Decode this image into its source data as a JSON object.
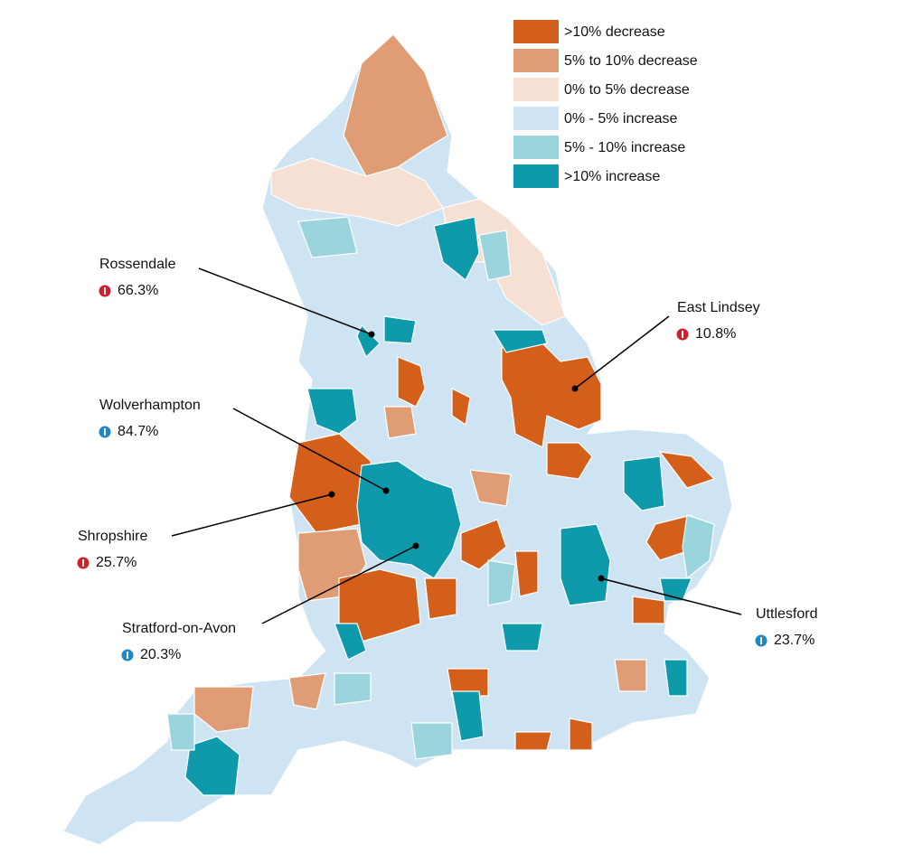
{
  "legend": {
    "items": [
      {
        "label": ">10% decrease",
        "color": "#d35f1a"
      },
      {
        "label": "5% to 10% decrease",
        "color": "#e09d75"
      },
      {
        "label": "0% to 5% decrease",
        "color": "#f6dfd3"
      },
      {
        "label": "0% - 5% increase",
        "color": "#cfe4f3"
      },
      {
        "label": "5% - 10% increase",
        "color": "#9ad4dc"
      },
      {
        "label": ">10% increase",
        "color": "#0f9aab"
      }
    ]
  },
  "annotations": [
    {
      "name": "Rossendale",
      "change": "66.3%",
      "icon_color": "#d0202e"
    },
    {
      "name": "Wolverhampton",
      "change": "84.7%",
      "icon_color": "#1f86c7"
    },
    {
      "name": "Shropshire",
      "change": "25.7%",
      "icon_color": "#d0202e"
    },
    {
      "name": "Stratford-on-Avon",
      "change": "20.3%",
      "icon_color": "#1f86c7"
    },
    {
      "name": "East Lindsey",
      "change": "10.8%",
      "icon_color": "#d0202e"
    },
    {
      "name": "Uttlesford",
      "change": "23.7%",
      "icon_color": "#1f86c7"
    }
  ]
}
